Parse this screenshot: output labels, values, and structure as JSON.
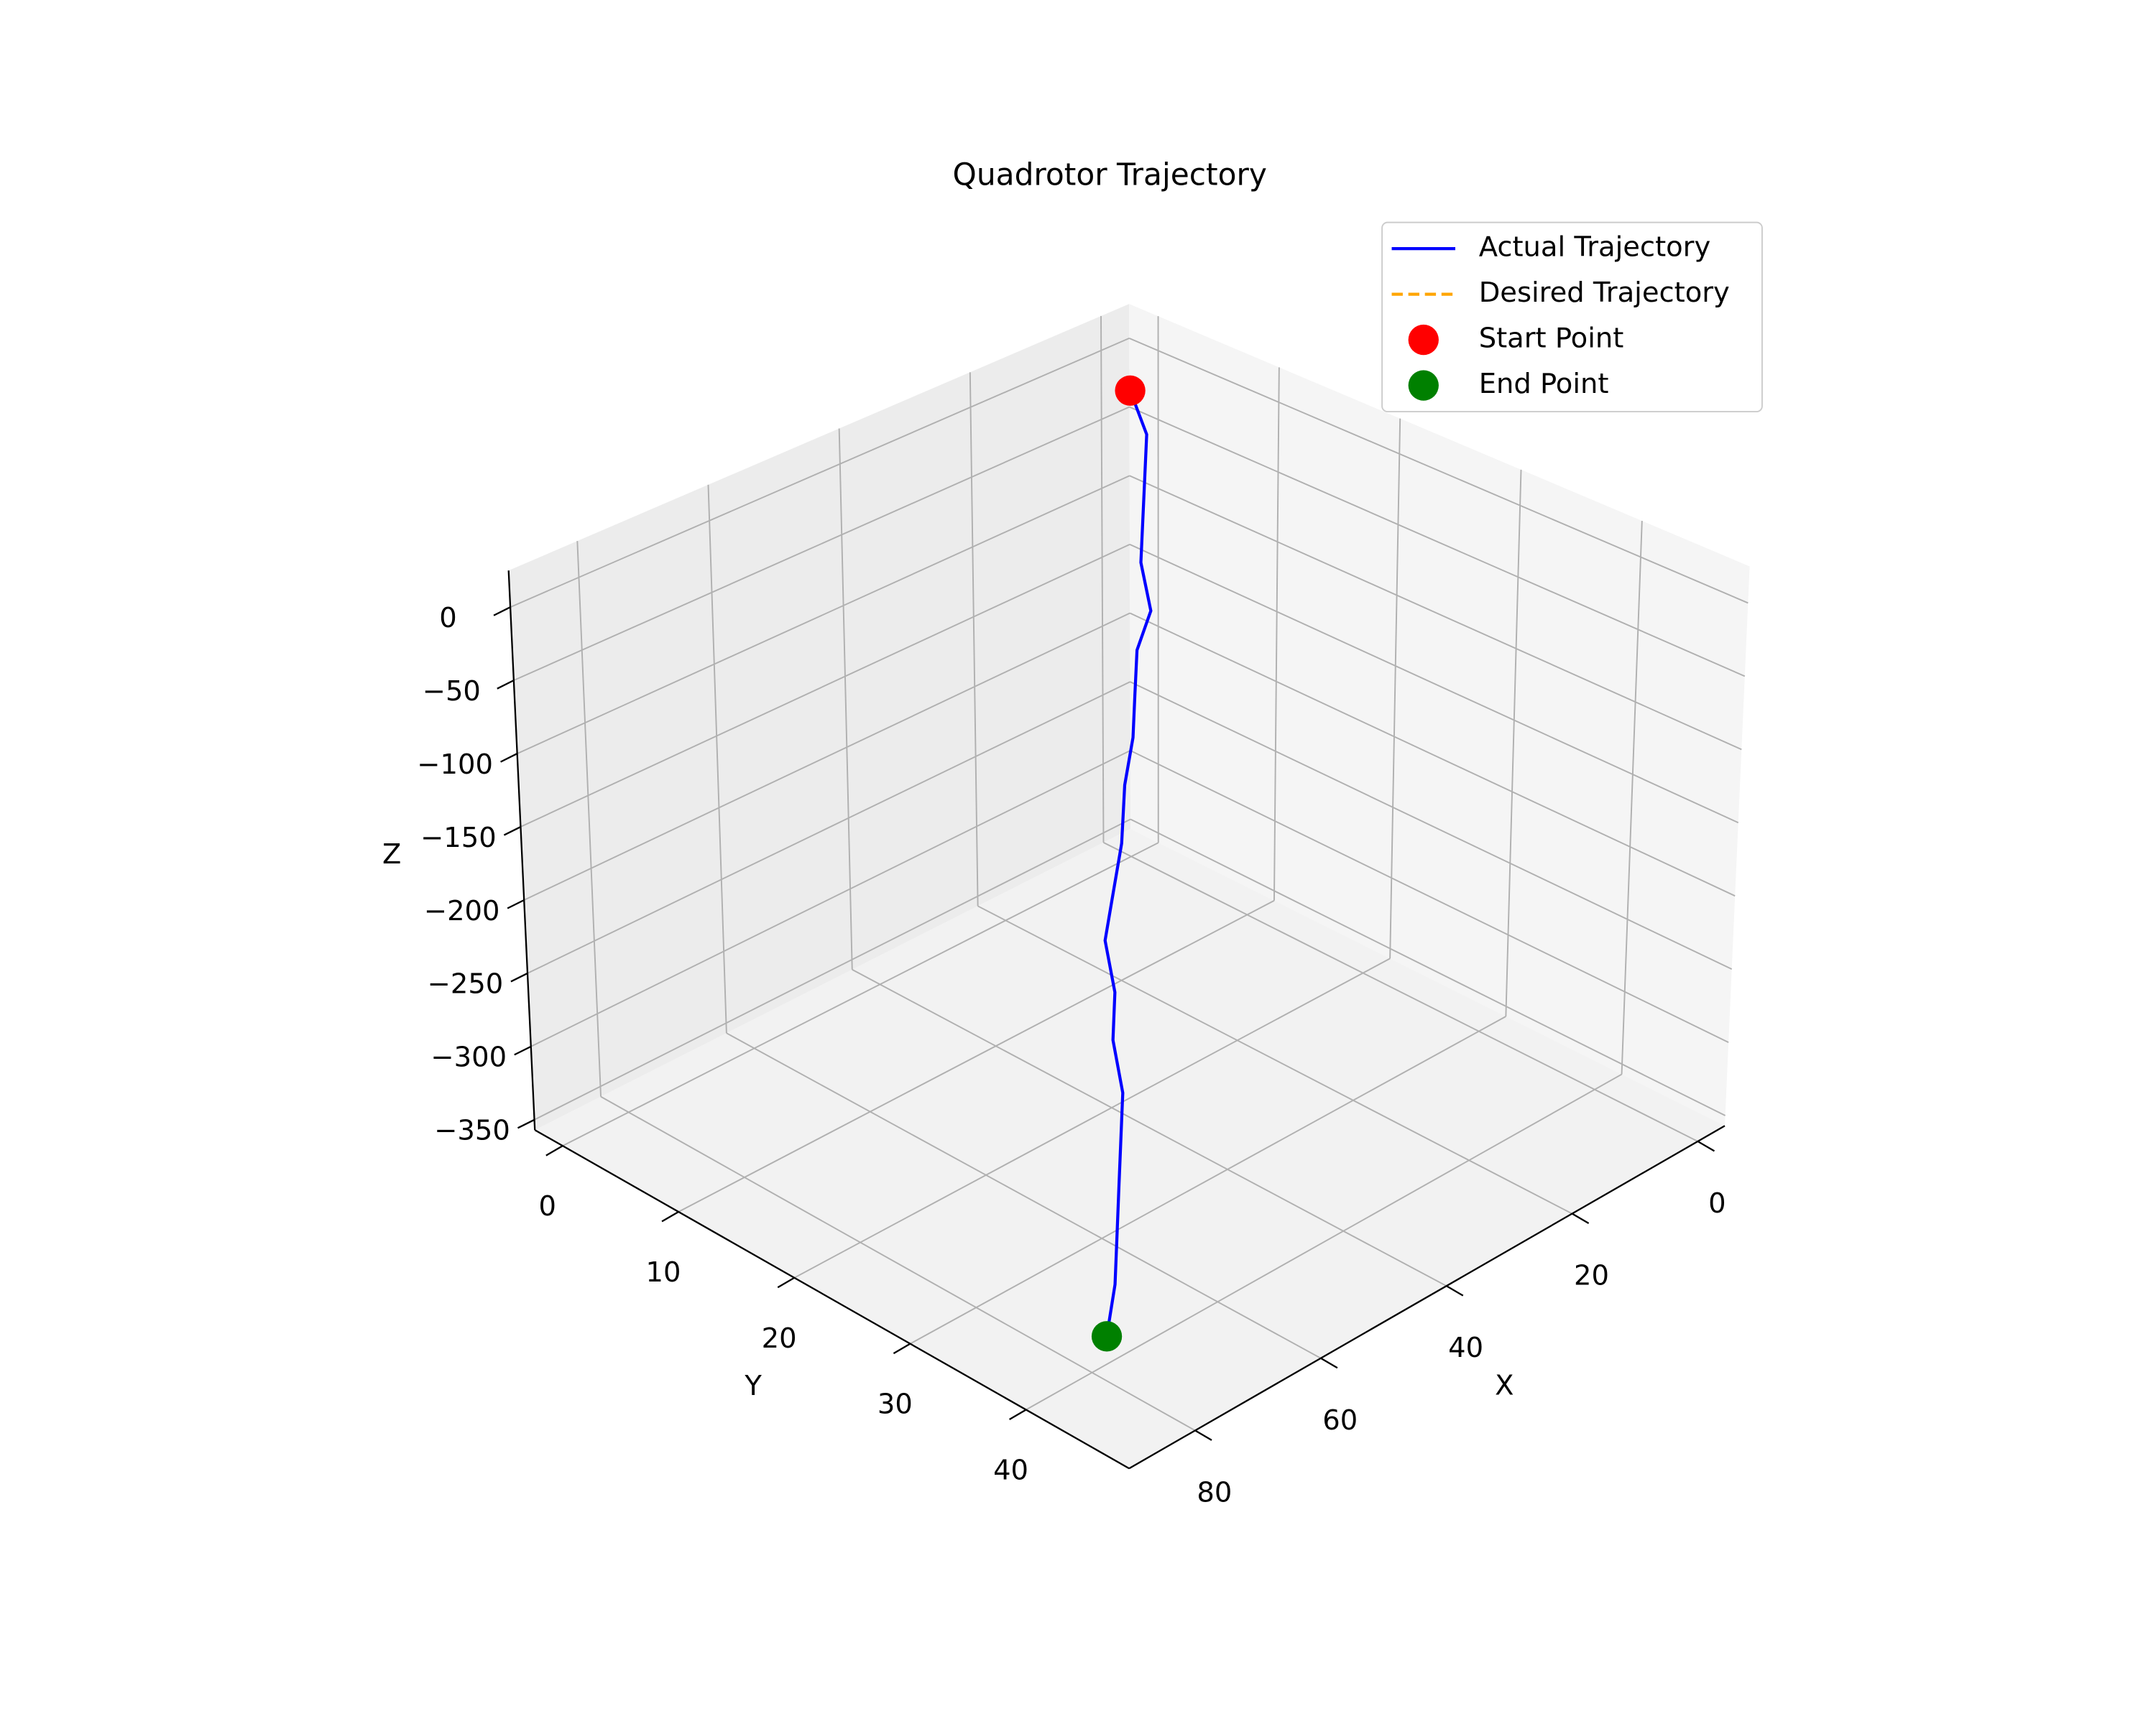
{
  "chart_data": {
    "type": "line3d",
    "title": "Quadrotor Trajectory",
    "xlabel": "X",
    "ylabel": "Y",
    "zlabel": "Z",
    "xlim": [
      -4.3,
      90.5
    ],
    "ylim": [
      -2.4,
      48.9
    ],
    "zlim": [
      -357,
      25
    ],
    "xticks": [
      0,
      20,
      40,
      60,
      80
    ],
    "yticks": [
      0,
      10,
      20,
      30,
      40
    ],
    "zticks": [
      0,
      {
        "value": -50,
        "label": "−50"
      },
      {
        "value": -100,
        "label": "−100"
      },
      {
        "value": -150,
        "label": "−150"
      },
      {
        "value": -200,
        "label": "−200"
      },
      {
        "value": -250,
        "label": "−250"
      },
      {
        "value": -300,
        "label": "−300"
      },
      {
        "value": -350,
        "label": "−350"
      }
    ],
    "grid": true,
    "legend": "upper right",
    "series": [
      {
        "name": "Actual Trajectory",
        "color": "#0000ff",
        "style": "solid",
        "x": [
          0,
          3,
          7,
          11,
          15,
          19,
          23,
          27,
          31,
          36,
          42,
          47,
          52,
          56,
          60,
          64,
          68,
          72,
          76,
          80,
          85
        ],
        "y": [
          0,
          3,
          5,
          7,
          9,
          12,
          13,
          15,
          17,
          19,
          22,
          24,
          26,
          29,
          31,
          34,
          36,
          38,
          40,
          42,
          44
        ],
        "z": [
          -20,
          -34,
          -49,
          -63,
          -77,
          -91,
          -106,
          -120,
          -134,
          -148,
          -163,
          -177,
          -191,
          -205,
          -220,
          -234,
          -248,
          -262,
          -277,
          -291,
          -305
        ]
      },
      {
        "name": "Desired Trajectory",
        "color": "#ffa500",
        "style": "dashed",
        "x": [],
        "y": [],
        "z": []
      }
    ],
    "points": [
      {
        "name": "Start Point",
        "color": "#ff0000",
        "x": 0,
        "y": 0,
        "z": -20
      },
      {
        "name": "End Point",
        "color": "#008000",
        "x": 85,
        "y": 44,
        "z": -305
      }
    ]
  }
}
